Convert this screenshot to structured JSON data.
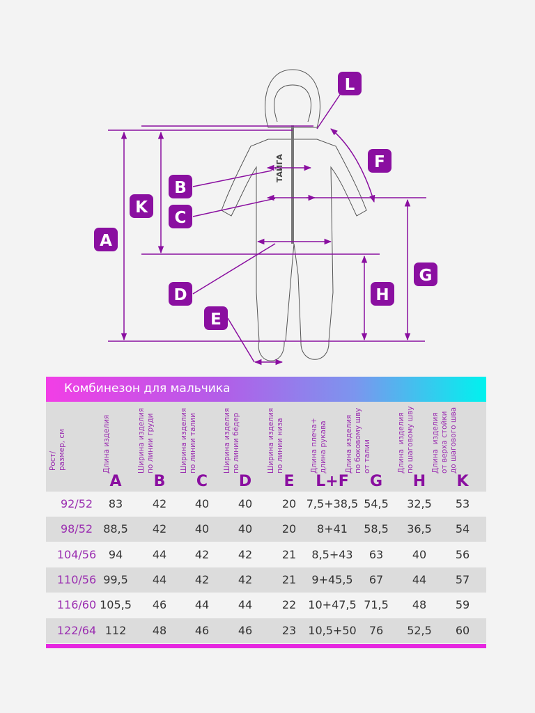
{
  "diagram": {
    "labels": [
      "L",
      "F",
      "B",
      "C",
      "K",
      "A",
      "G",
      "H",
      "D",
      "E"
    ],
    "brand_text": "ТАЙГА",
    "accent_color": "#8a0fa0"
  },
  "title": "Комбинезон для мальчика",
  "columns": [
    {
      "header": "Рост/\nразмер, см",
      "letter": ""
    },
    {
      "header": "Длина изделия",
      "letter": "A"
    },
    {
      "header": "Ширина изделия\nпо линии груди",
      "letter": "B"
    },
    {
      "header": "Ширина изделия\nпо линии талии",
      "letter": "C"
    },
    {
      "header": "Ширина изделия\nпо линии бёдер",
      "letter": "D"
    },
    {
      "header": "Ширина изделия\nпо линии низа",
      "letter": "E"
    },
    {
      "header": "Длина плеча+\nдлина рукава",
      "letter": "L+F"
    },
    {
      "header": "Длина изделия\nпо боковому шву\nот талии",
      "letter": "G"
    },
    {
      "header": "Длина  изделия\nпо шаговому шву",
      "letter": "H"
    },
    {
      "header": "Длина  изделия\nот верха стойки\nдо шагового шва",
      "letter": "K"
    }
  ],
  "rows": [
    [
      "92/52",
      "83",
      "42",
      "40",
      "40",
      "20",
      "7,5+38,5",
      "54,5",
      "32,5",
      "53"
    ],
    [
      "98/52",
      "88,5",
      "42",
      "40",
      "40",
      "20",
      "8+41",
      "58,5",
      "36,5",
      "54"
    ],
    [
      "104/56",
      "94",
      "44",
      "42",
      "42",
      "21",
      "8,5+43",
      "63",
      "40",
      "56"
    ],
    [
      "110/56",
      "99,5",
      "44",
      "42",
      "42",
      "21",
      "9+45,5",
      "67",
      "44",
      "57"
    ],
    [
      "116/60",
      "105,5",
      "46",
      "44",
      "44",
      "22",
      "10+47,5",
      "71,5",
      "48",
      "59"
    ],
    [
      "122/64",
      "112",
      "48",
      "46",
      "46",
      "23",
      "10,5+50",
      "76",
      "52,5",
      "60"
    ]
  ]
}
